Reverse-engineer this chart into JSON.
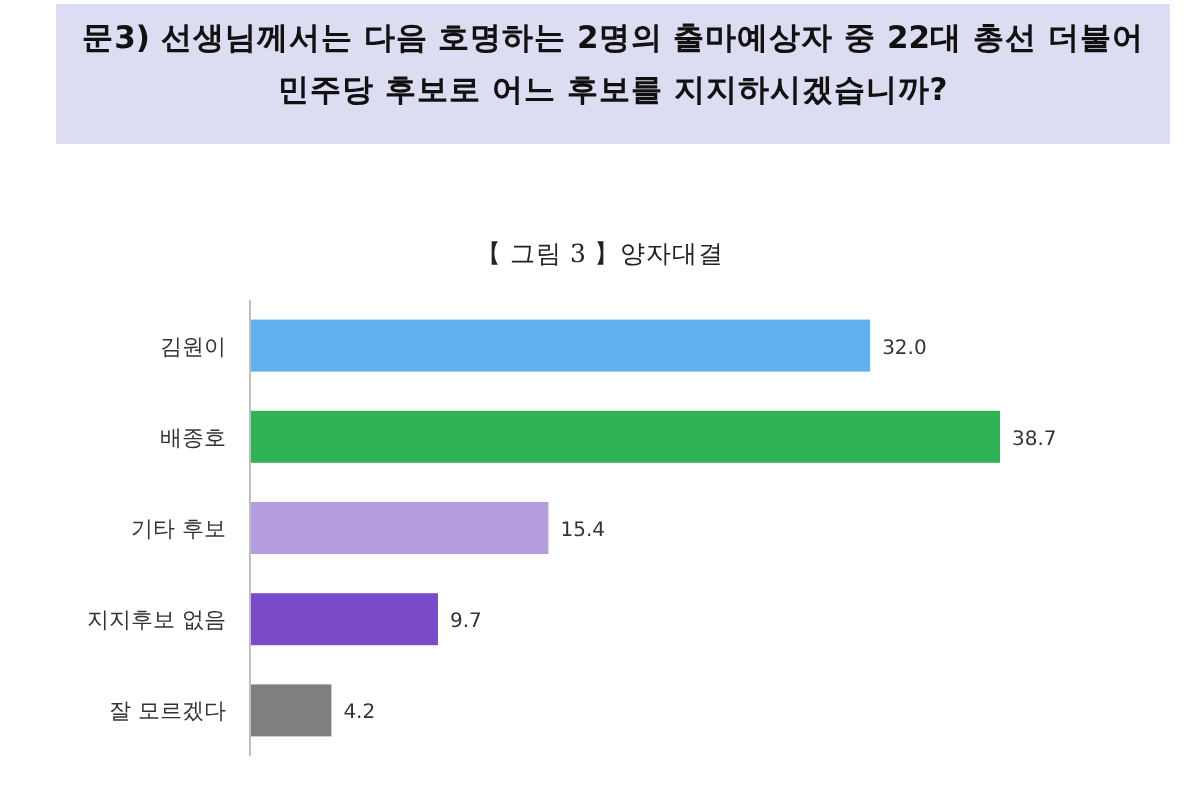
{
  "chart_data": {
    "type": "bar",
    "orientation": "horizontal",
    "title": "문3) 선생님께서는 다음 호명하는 2명의 출마예상자 중 22대 총선 더불어민주당 후보로 어느 후보를 지지하시겠습니까?",
    "subtitle": "【 그림 3 】양자대결",
    "categories": [
      "김원이",
      "배종호",
      "기타 후보",
      "지지후보 없음",
      "잘 모르겠다"
    ],
    "values": [
      32.0,
      38.7,
      15.4,
      9.7,
      4.2
    ],
    "value_labels": [
      "32.0",
      "38.7",
      "15.4",
      "9.7",
      "4.2"
    ],
    "colors": [
      "#63b0f0",
      "#2fb356",
      "#b39ddf",
      "#7a4bc9",
      "#7f7f7f"
    ],
    "data_labels": true
  }
}
